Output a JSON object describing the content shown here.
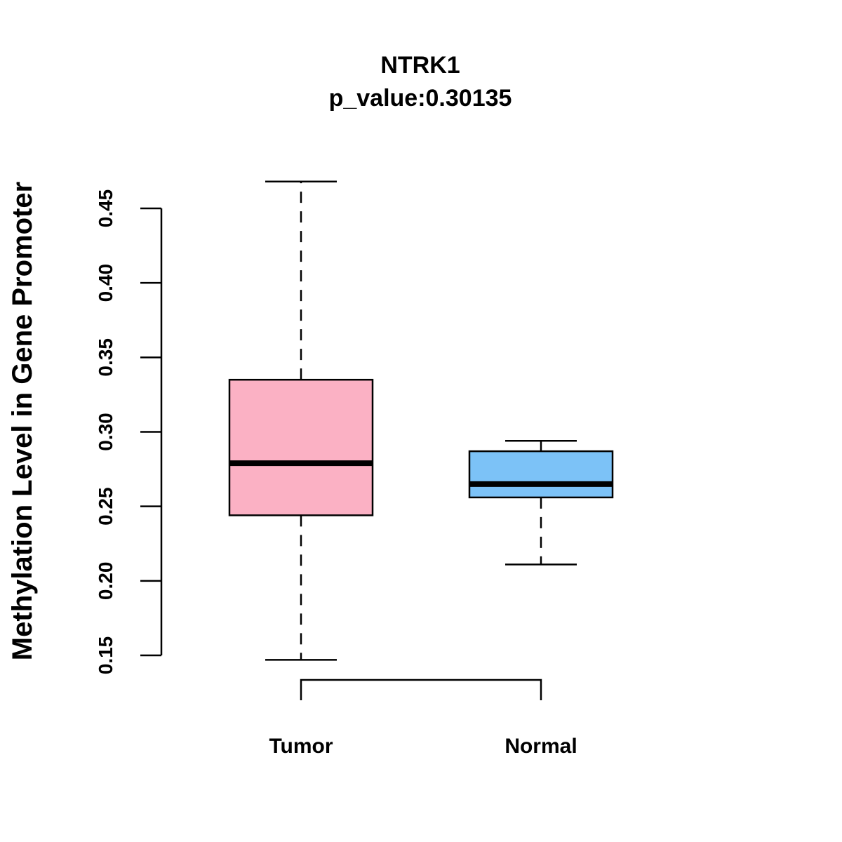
{
  "chart_data": {
    "type": "boxplot",
    "title": "NTRK1",
    "subtitle": "p_value:0.30135",
    "xlabel": "",
    "ylabel": "Methylation Level in Gene Promoter",
    "ylim": [
      0.15,
      0.45
    ],
    "yticks": [
      0.15,
      0.2,
      0.25,
      0.3,
      0.35,
      0.4,
      0.45
    ],
    "ytick_labels": [
      "0.15",
      "0.20",
      "0.25",
      "0.30",
      "0.35",
      "0.40",
      "0.45"
    ],
    "categories": [
      "Tumor",
      "Normal"
    ],
    "boxes": [
      {
        "name": "Tumor",
        "whisker_low": 0.147,
        "q1": 0.244,
        "median": 0.279,
        "q3": 0.335,
        "whisker_high": 0.468,
        "color": "#FBB1C4"
      },
      {
        "name": "Normal",
        "whisker_low": 0.211,
        "q1": 0.256,
        "median": 0.265,
        "q3": 0.287,
        "whisker_high": 0.294,
        "color": "#7CC2F7"
      }
    ],
    "grid": false,
    "comparison_bracket": [
      "Tumor",
      "Normal"
    ]
  }
}
